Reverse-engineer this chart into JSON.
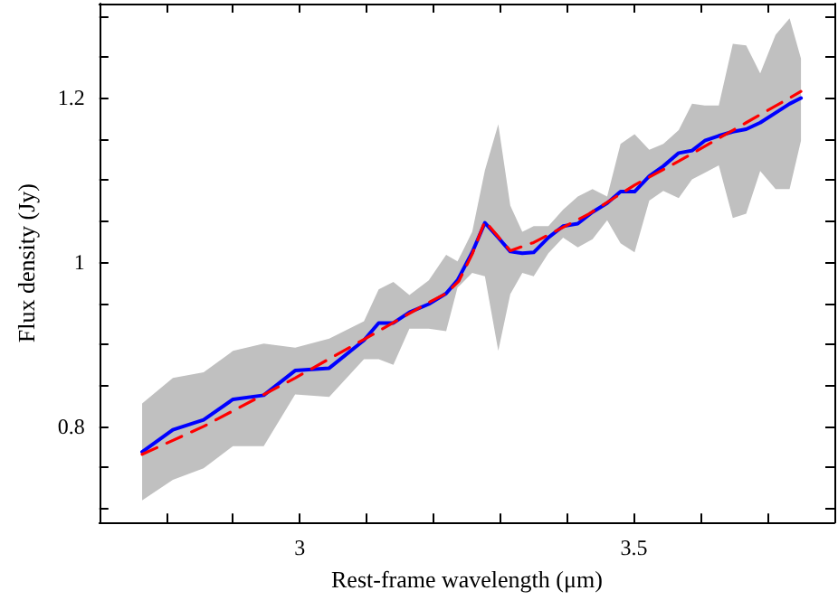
{
  "chart_data": {
    "type": "line",
    "xlabel": "Rest-frame wavelength (μm)",
    "ylabel": "Flux density (Jy)",
    "xlim": [
      2.7,
      3.8
    ],
    "ylim": [
      0.683,
      1.315
    ],
    "xticks": [
      {
        "value": 2.8,
        "label": null
      },
      {
        "value": 2.9,
        "label": null
      },
      3,
      {
        "value": 3.1,
        "label": null
      },
      {
        "value": 3.2,
        "label": null
      },
      {
        "value": 3.3,
        "label": null
      },
      {
        "value": 3.4,
        "label": null
      },
      3.5,
      {
        "value": 3.6,
        "label": null
      },
      {
        "value": 3.7,
        "label": null
      }
    ],
    "yticks": [
      {
        "value": 0.7,
        "label": null
      },
      {
        "value": 0.75,
        "label": null
      },
      0.8,
      {
        "value": 0.85,
        "label": null
      },
      {
        "value": 0.9,
        "label": null
      },
      {
        "value": 0.95,
        "label": null
      },
      1,
      {
        "value": 1.05,
        "label": null
      },
      {
        "value": 1.1,
        "label": null
      },
      {
        "value": 1.15,
        "label": null
      },
      1.2,
      {
        "value": 1.25,
        "label": null
      },
      {
        "value": 1.3,
        "label": null
      }
    ],
    "marker": "none",
    "series": [
      {
        "color": "#0000ff",
        "line_style": "solid",
        "x": [
          2.764,
          2.81,
          2.856,
          2.9,
          2.946,
          2.993,
          3.044,
          3.096,
          3.118,
          3.14,
          3.164,
          3.193,
          3.219,
          3.236,
          3.258,
          3.277,
          3.297,
          3.315,
          3.333,
          3.35,
          3.372,
          3.394,
          3.416,
          3.438,
          3.46,
          3.48,
          3.501,
          3.523,
          3.544,
          3.567,
          3.587,
          3.606,
          3.627,
          3.648,
          3.668,
          3.689,
          3.712,
          3.733,
          3.75
        ],
        "values": [
          0.769,
          0.796,
          0.808,
          0.833,
          0.838,
          0.868,
          0.871,
          0.905,
          0.926,
          0.926,
          0.939,
          0.949,
          0.962,
          0.978,
          1.012,
          1.048,
          1.03,
          1.013,
          1.011,
          1.012,
          1.03,
          1.044,
          1.047,
          1.061,
          1.072,
          1.086,
          1.086,
          1.105,
          1.117,
          1.133,
          1.136,
          1.148,
          1.154,
          1.159,
          1.162,
          1.17,
          1.182,
          1.193,
          1.2
        ],
        "upper": [
          0.828,
          0.859,
          0.866,
          0.892,
          0.901,
          0.896,
          0.907,
          0.928,
          0.967,
          0.976,
          0.96,
          0.978,
          1.009,
          1.001,
          1.037,
          1.112,
          1.168,
          1.069,
          1.037,
          1.044,
          1.044,
          1.064,
          1.08,
          1.089,
          1.08,
          1.144,
          1.156,
          1.137,
          1.144,
          1.161,
          1.193,
          1.191,
          1.191,
          1.266,
          1.264,
          1.23,
          1.277,
          1.297,
          1.248
        ],
        "lower": [
          0.71,
          0.735,
          0.749,
          0.776,
          0.776,
          0.839,
          0.836,
          0.882,
          0.882,
          0.875,
          0.919,
          0.919,
          0.916,
          0.969,
          0.987,
          0.983,
          0.892,
          0.961,
          0.987,
          0.983,
          1.011,
          1.03,
          1.018,
          1.028,
          1.051,
          1.023,
          1.012,
          1.075,
          1.087,
          1.078,
          1.101,
          1.109,
          1.118,
          1.054,
          1.059,
          1.111,
          1.089,
          1.089,
          1.148
        ]
      },
      {
        "color": "#ff0000",
        "line_style": "dashed",
        "x": [
          2.764,
          2.856,
          2.993,
          3.096,
          3.193,
          3.219,
          3.238,
          3.258,
          3.277,
          3.315,
          3.35,
          3.433,
          3.501,
          3.567,
          3.668,
          3.75
        ],
        "values": [
          0.766,
          0.8,
          0.859,
          0.906,
          0.951,
          0.962,
          0.977,
          1.01,
          1.05,
          1.014,
          1.024,
          1.059,
          1.094,
          1.123,
          1.17,
          1.208
        ]
      }
    ]
  }
}
